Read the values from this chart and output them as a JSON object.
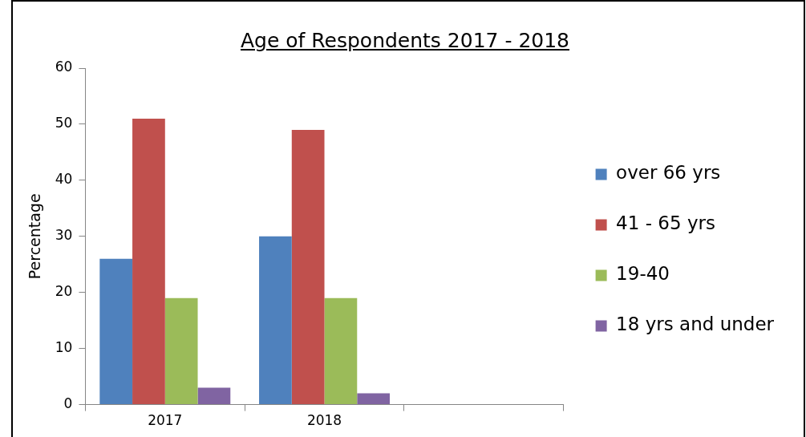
{
  "chart_data": {
    "type": "bar",
    "title": "Age of Respondents 2017 - 2018",
    "ylabel": "Percentage",
    "categories": [
      "2017",
      "2018",
      null
    ],
    "series": [
      {
        "name": "over 66 yrs",
        "color": "#4f81bd",
        "values": [
          26,
          30,
          null
        ]
      },
      {
        "name": "41 - 65 yrs",
        "color": "#c0504d",
        "values": [
          51,
          49,
          null
        ]
      },
      {
        "name": "19-40",
        "color": "#9bbb59",
        "values": [
          19,
          19,
          null
        ]
      },
      {
        "name": "18 yrs and under",
        "color": "#8064a2",
        "values": [
          3,
          2,
          null
        ]
      }
    ],
    "ylim": [
      0,
      60
    ],
    "yticks": [
      0,
      10,
      20,
      30,
      40,
      50,
      60
    ],
    "grid": false,
    "legend": "right"
  }
}
